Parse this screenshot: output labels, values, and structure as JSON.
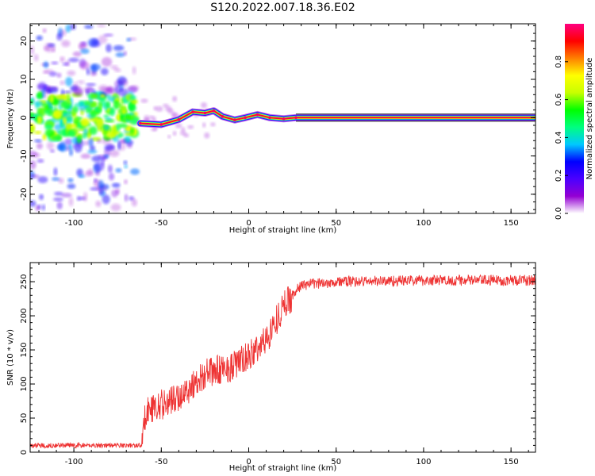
{
  "title": "S120.2022.007.18.36.E02",
  "chart_data": [
    {
      "type": "heatmap",
      "xlabel": "Height of straight line (km)",
      "ylabel": "Frequency (Hz)",
      "xlim": [
        -125,
        164
      ],
      "ylim": [
        -25,
        24.5
      ],
      "xticks": [
        -100,
        -50,
        0,
        50,
        100,
        150
      ],
      "yticks": [
        -20,
        -10,
        0,
        10,
        20
      ],
      "colorbar": {
        "label": "Normalized spectral amplitude",
        "range": [
          0,
          1
        ],
        "ticks": [
          "0.0",
          "0.2",
          "0.4",
          "0.6",
          "0.8"
        ],
        "colors": [
          "#ffffff",
          "#9400d3",
          "#4b00ff",
          "#0000ff",
          "#00c8ff",
          "#00ff80",
          "#00ff00",
          "#c8ff00",
          "#ffff00",
          "#ff8000",
          "#ff0000",
          "#ff0080"
        ]
      },
      "ridge": [
        {
          "x": -62,
          "freq": -1.5
        },
        {
          "x": -50,
          "freq": -1.8
        },
        {
          "x": -40,
          "freq": -0.5
        },
        {
          "x": -32,
          "freq": 1.5
        },
        {
          "x": -25,
          "freq": 1.2
        },
        {
          "x": -20,
          "freq": 1.8
        },
        {
          "x": -15,
          "freq": 0.3
        },
        {
          "x": -8,
          "freq": -0.6
        },
        {
          "x": -2,
          "freq": 0.0
        },
        {
          "x": 5,
          "freq": 0.8
        },
        {
          "x": 12,
          "freq": 0.0
        },
        {
          "x": 20,
          "freq": -0.3
        },
        {
          "x": 27,
          "freq": 0.0
        },
        {
          "x": 164,
          "freq": 0.0
        }
      ]
    },
    {
      "type": "line",
      "xlabel": "Height of straight line (km)",
      "ylabel": "SNR (10 * v/v)",
      "xlim": [
        -125,
        164
      ],
      "ylim": [
        0,
        278
      ],
      "xticks": [
        -100,
        -50,
        0,
        50,
        100,
        150
      ],
      "yticks": [
        0,
        50,
        100,
        150,
        200,
        250
      ],
      "series_color": "#ee3333",
      "trend": [
        {
          "x": -125,
          "y": 10
        },
        {
          "x": -61,
          "y": 10
        },
        {
          "x": -59,
          "y": 60
        },
        {
          "x": -40,
          "y": 80
        },
        {
          "x": -25,
          "y": 115
        },
        {
          "x": -10,
          "y": 125
        },
        {
          "x": 0,
          "y": 140
        },
        {
          "x": 10,
          "y": 165
        },
        {
          "x": 20,
          "y": 215
        },
        {
          "x": 30,
          "y": 245
        },
        {
          "x": 50,
          "y": 250
        },
        {
          "x": 100,
          "y": 252
        },
        {
          "x": 164,
          "y": 252
        }
      ]
    }
  ]
}
